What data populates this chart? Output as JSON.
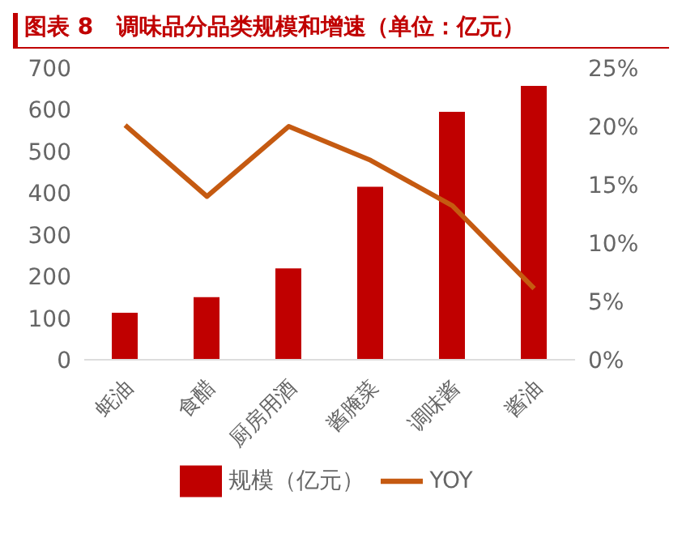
{
  "chart_data": {
    "type": "bar",
    "title": "图表 8   调味品分品类规模和增速（单位：亿元）",
    "categories": [
      "蚝油",
      "食醋",
      "厨房用酒",
      "酱腌菜",
      "调味酱",
      "酱油"
    ],
    "series": [
      {
        "name": "规模（亿元）",
        "color": "#c00000",
        "values": [
          113,
          150,
          219,
          415,
          595,
          657
        ]
      },
      {
        "name": "YOY",
        "type": "line",
        "axis": "y2",
        "color": "#c55a11",
        "values": [
          20.1,
          14.0,
          20.0,
          17.1,
          13.2,
          6.1
        ]
      }
    ],
    "ylim": [
      0,
      700
    ],
    "yticks": [
      0,
      100,
      200,
      300,
      400,
      500,
      600,
      700
    ],
    "y2lim": [
      0,
      25
    ],
    "y2ticks": [
      {
        "value": 0,
        "label": "0%"
      },
      {
        "value": 5,
        "label": "5%"
      },
      {
        "value": 10,
        "label": "10%"
      },
      {
        "value": 15,
        "label": "15%"
      },
      {
        "value": 20,
        "label": "20%"
      },
      {
        "value": 25,
        "label": "25%"
      }
    ],
    "grid": false,
    "legend": "bottom",
    "marker": "none",
    "line_style": "solid"
  }
}
